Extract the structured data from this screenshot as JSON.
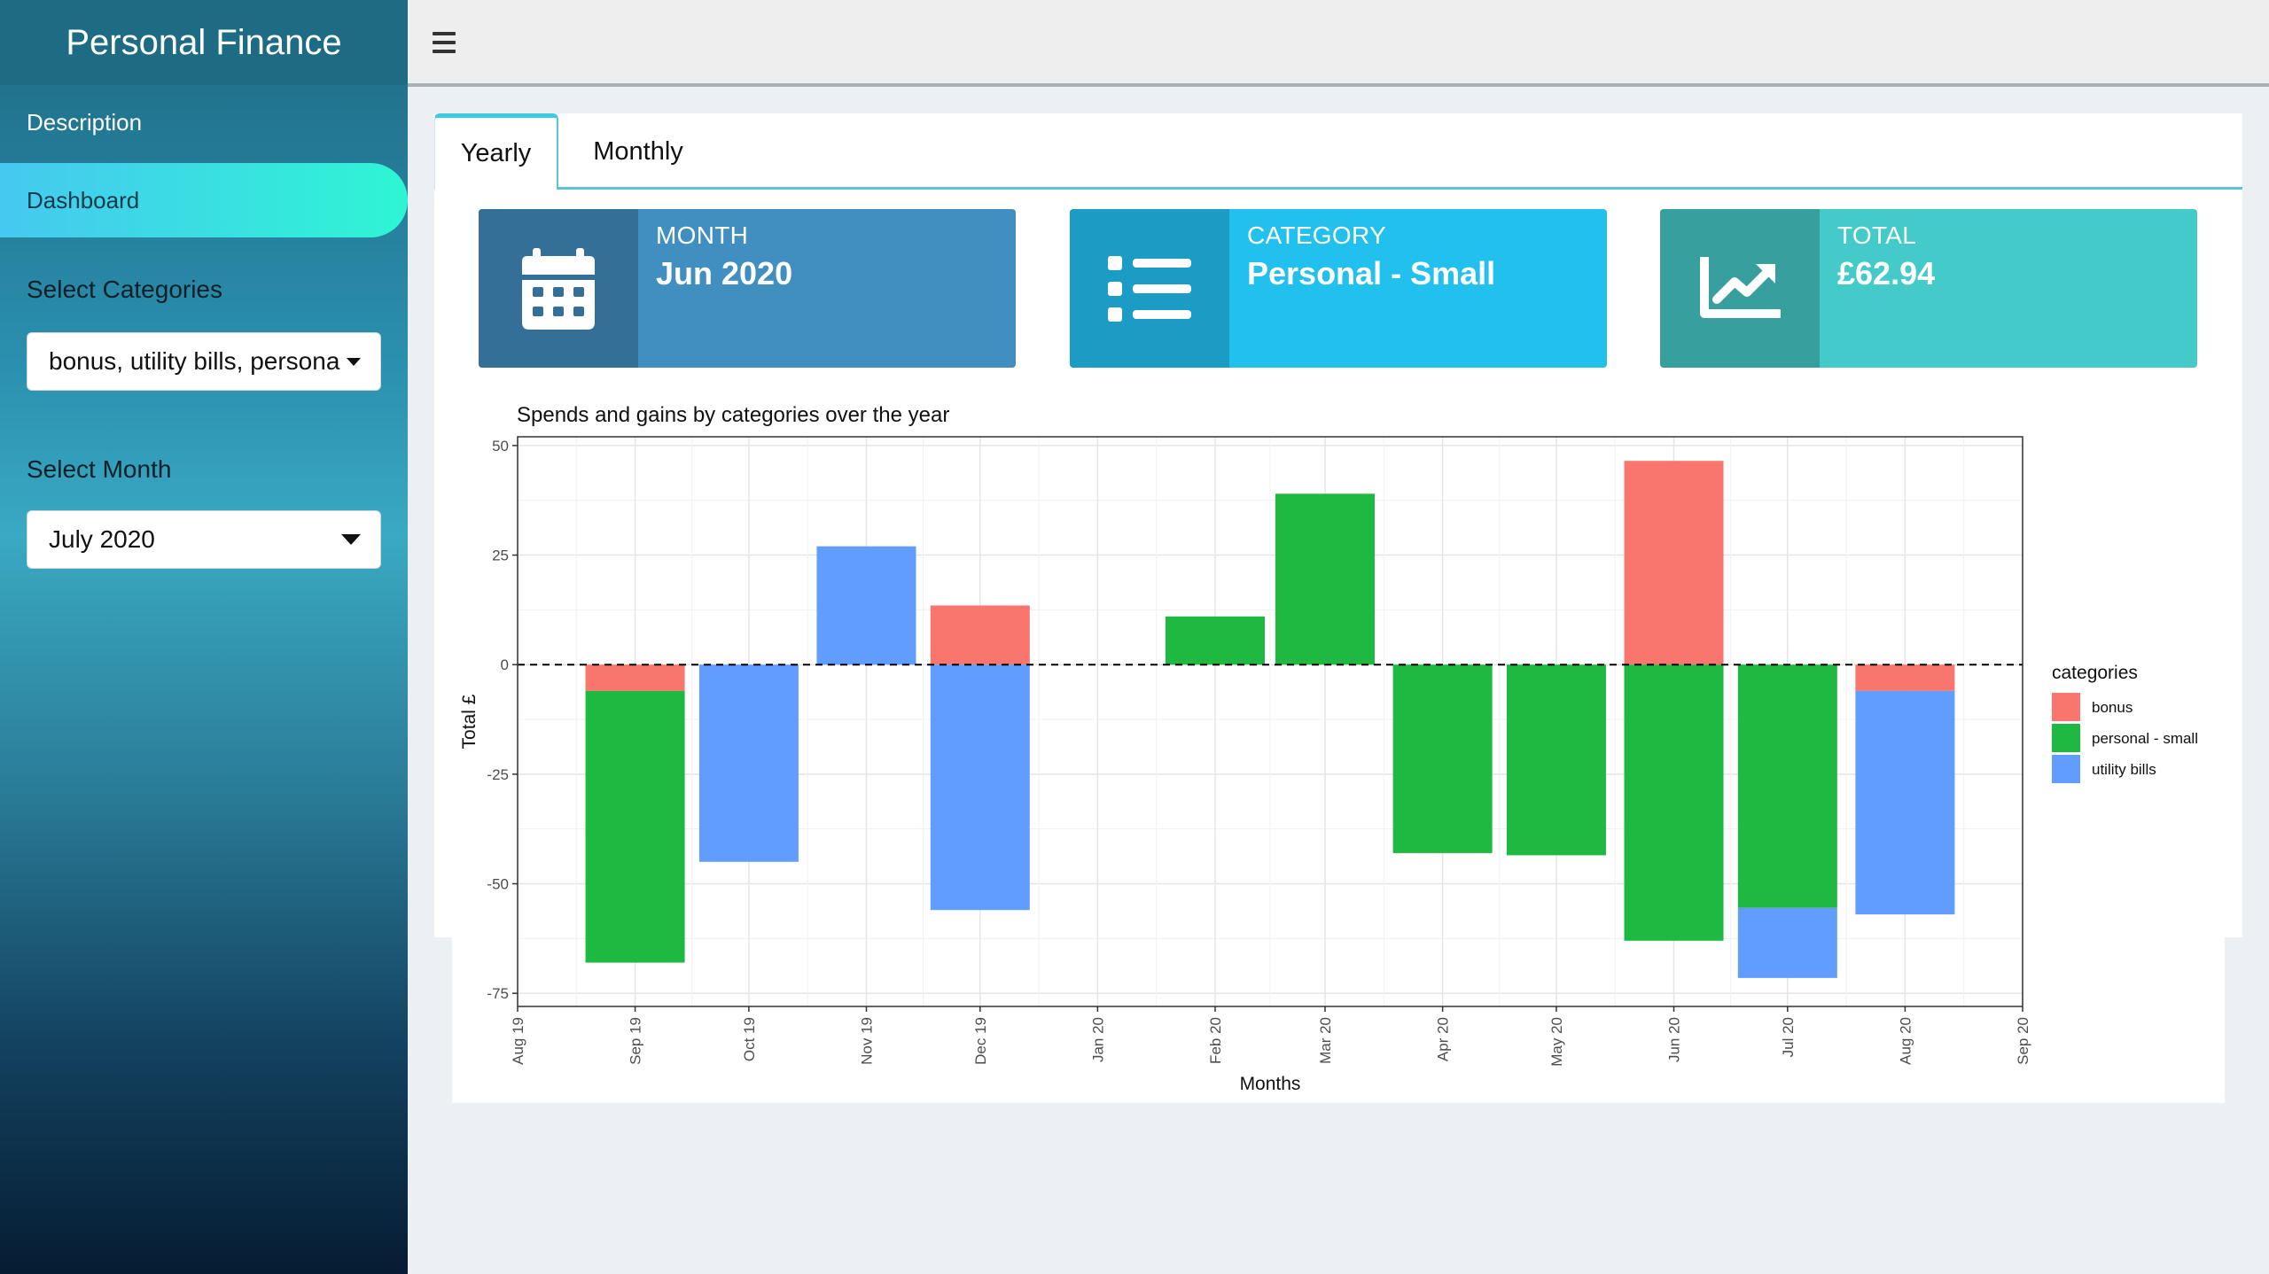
{
  "app": {
    "title": "Personal Finance"
  },
  "sidebar": {
    "items": [
      {
        "label": "Description"
      },
      {
        "label": "Dashboard"
      }
    ],
    "categories_label": "Select Categories",
    "categories_value": "bonus, utility bills, personal - small",
    "month_label": "Select Month",
    "month_value": "July 2020"
  },
  "tabs": [
    {
      "label": "Yearly"
    },
    {
      "label": "Monthly"
    }
  ],
  "info_boxes": {
    "month": {
      "title": "MONTH",
      "value": "Jun 2020",
      "icon": "calendar-icon"
    },
    "category": {
      "title": "CATEGORY",
      "value": "Personal - Small",
      "icon": "list-icon"
    },
    "total": {
      "title": "TOTAL",
      "value": "£62.94",
      "icon": "line-chart-icon"
    }
  },
  "colors": {
    "bonus": "#f8766d",
    "personal_small": "#1db940",
    "utility_bills": "#619cff",
    "month_box": "#418fc0",
    "category_box": "#22c0ec",
    "total_box": "#44cac9"
  },
  "chart_data": {
    "type": "bar",
    "stacked": true,
    "title": "Spends and gains by categories over the year",
    "xlabel": "Months",
    "ylabel": "Total £",
    "ylim": [
      -78,
      52
    ],
    "yticks": [
      50,
      25,
      0,
      -25,
      -50,
      -75
    ],
    "ytick_labels": [
      "50",
      "25",
      "0",
      "-25",
      "-50",
      "-75"
    ],
    "xticks": [
      "Aug 19",
      "Sep 19",
      "Oct 19",
      "Nov 19",
      "Dec 19",
      "Jan 20",
      "Feb 20",
      "Mar 20",
      "Apr 20",
      "May 20",
      "Jun 20",
      "Jul 20",
      "Aug 20",
      "Sep 20"
    ],
    "xlim": [
      "2019-08-01",
      "2020-09-01"
    ],
    "zero_line": "dashed",
    "grid": true,
    "legend": {
      "title": "categories",
      "position": "right"
    },
    "series": [
      {
        "name": "bonus",
        "color": "#f8766d",
        "points": [
          {
            "month": "2019-09-01",
            "value": -6
          },
          {
            "month": "2019-12-01",
            "value": 13.5
          },
          {
            "month": "2020-06-01",
            "value": 46.5
          },
          {
            "month": "2020-08-01",
            "value": -6
          }
        ]
      },
      {
        "name": "personal - small",
        "color": "#1db940",
        "points": [
          {
            "month": "2019-09-01",
            "value": -62
          },
          {
            "month": "2020-02-01",
            "value": 11
          },
          {
            "month": "2020-03-01",
            "value": 39
          },
          {
            "month": "2020-04-01",
            "value": -43
          },
          {
            "month": "2020-05-01",
            "value": -43.5
          },
          {
            "month": "2020-06-01",
            "value": -63
          },
          {
            "month": "2020-07-01",
            "value": -55.5
          }
        ]
      },
      {
        "name": "utility bills",
        "color": "#619cff",
        "points": [
          {
            "month": "2019-10-01",
            "value": -45
          },
          {
            "month": "2019-11-01",
            "value": 27
          },
          {
            "month": "2019-12-01",
            "value": -56
          },
          {
            "month": "2020-07-01",
            "value": -16
          },
          {
            "month": "2020-08-01",
            "value": -51
          }
        ]
      }
    ]
  }
}
